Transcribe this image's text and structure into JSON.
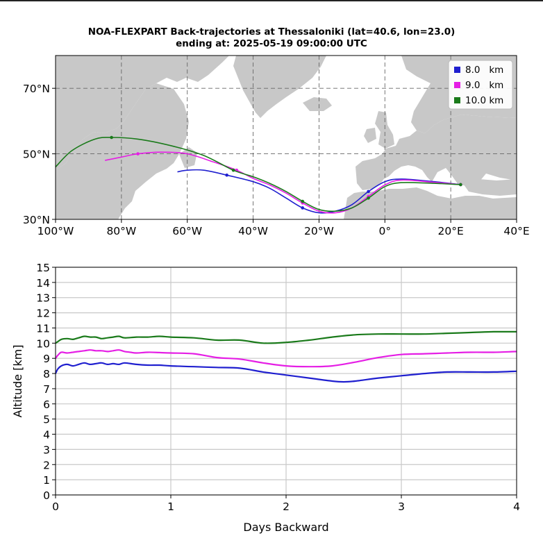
{
  "title_line1": "NOA-FLEXPART Back-trajectories at Thessaloniki (lat=40.6, lon=23.0)",
  "title_line2": "ending at: 2025-05-19  09:00:00 UTC",
  "colors": {
    "8.0 km": "#1f1fcf",
    "9.0 km": "#e51ee5",
    "10.0 km": "#1a7a1a",
    "land": "#c8c8c8",
    "ocean": "#ffffff"
  },
  "chart_data": [
    {
      "type": "map-trajectory",
      "xlim": [
        -100,
        40
      ],
      "ylim": [
        30,
        80
      ],
      "x_ticks": [
        "100°W",
        "80°W",
        "60°W",
        "40°W",
        "20°W",
        "0°",
        "20°E",
        "40°E"
      ],
      "y_ticks": [
        "30°N",
        "50°N",
        "70°N"
      ],
      "grid": true,
      "legend": {
        "position": "top-right",
        "entries": [
          "8.0   km",
          "9.0   km",
          "10.0 km"
        ]
      },
      "series": [
        {
          "name": "8.0   km",
          "points": [
            [
              23,
              40.6
            ],
            [
              15,
              41.5
            ],
            [
              5,
              42.3
            ],
            [
              0,
              41.5
            ],
            [
              -5,
              38.5
            ],
            [
              -10,
              34.5
            ],
            [
              -15,
              32.5
            ],
            [
              -20,
              32
            ],
            [
              -25,
              33.5
            ],
            [
              -30,
              36.5
            ],
            [
              -35,
              39.5
            ],
            [
              -40,
              41.5
            ],
            [
              -48,
              43.5
            ],
            [
              -55,
              45
            ],
            [
              -60,
              45
            ],
            [
              -63,
              44.5
            ]
          ]
        },
        {
          "name": "9.0   km",
          "points": [
            [
              23,
              40.6
            ],
            [
              15,
              41.3
            ],
            [
              5,
              42
            ],
            [
              0,
              40.5
            ],
            [
              -5,
              37
            ],
            [
              -10,
              33.5
            ],
            [
              -15,
              32
            ],
            [
              -20,
              32.5
            ],
            [
              -25,
              35
            ],
            [
              -30,
              38
            ],
            [
              -35,
              40.5
            ],
            [
              -40,
              42.5
            ],
            [
              -45,
              45
            ],
            [
              -52,
              47.5
            ],
            [
              -60,
              50
            ],
            [
              -68,
              50.5
            ],
            [
              -75,
              50
            ],
            [
              -80,
              49
            ],
            [
              -85,
              48
            ]
          ]
        },
        {
          "name": "10.0 km",
          "points": [
            [
              23,
              40.6
            ],
            [
              15,
              41
            ],
            [
              5,
              41.2
            ],
            [
              0,
              40
            ],
            [
              -5,
              36.5
            ],
            [
              -10,
              33.5
            ],
            [
              -15,
              32.5
            ],
            [
              -20,
              33
            ],
            [
              -25,
              35.5
            ],
            [
              -30,
              38.5
            ],
            [
              -35,
              41
            ],
            [
              -40,
              43
            ],
            [
              -46,
              45
            ],
            [
              -55,
              49.5
            ],
            [
              -65,
              52.5
            ],
            [
              -75,
              54.5
            ],
            [
              -83,
              55
            ],
            [
              -88,
              54.5
            ],
            [
              -95,
              51
            ],
            [
              -100,
              46
            ]
          ]
        }
      ]
    },
    {
      "type": "line",
      "xlabel": "Days Backward",
      "ylabel": "Altitude [km]",
      "xlim": [
        0,
        4
      ],
      "ylim": [
        0,
        15
      ],
      "x_ticks": [
        "0",
        "1",
        "2",
        "3",
        "4"
      ],
      "y_ticks": [
        "0",
        "1",
        "2",
        "3",
        "4",
        "5",
        "6",
        "7",
        "8",
        "9",
        "10",
        "11",
        "12",
        "13",
        "14",
        "15"
      ],
      "grid": true,
      "series": [
        {
          "name": "8.0   km",
          "x": [
            0,
            0.02,
            0.05,
            0.1,
            0.15,
            0.2,
            0.25,
            0.3,
            0.35,
            0.4,
            0.45,
            0.5,
            0.55,
            0.6,
            0.7,
            0.8,
            0.9,
            1.0,
            1.2,
            1.4,
            1.6,
            1.8,
            2.0,
            2.2,
            2.4,
            2.5,
            2.6,
            2.8,
            3.0,
            3.2,
            3.4,
            3.6,
            3.8,
            4.0
          ],
          "values": [
            8.0,
            8.3,
            8.5,
            8.6,
            8.5,
            8.6,
            8.7,
            8.6,
            8.65,
            8.7,
            8.6,
            8.65,
            8.6,
            8.7,
            8.6,
            8.55,
            8.55,
            8.5,
            8.45,
            8.4,
            8.35,
            8.1,
            7.9,
            7.7,
            7.5,
            7.45,
            7.5,
            7.7,
            7.85,
            8.0,
            8.1,
            8.1,
            8.1,
            8.15
          ]
        },
        {
          "name": "9.0   km",
          "x": [
            0,
            0.02,
            0.05,
            0.1,
            0.15,
            0.2,
            0.25,
            0.3,
            0.35,
            0.4,
            0.45,
            0.5,
            0.55,
            0.6,
            0.65,
            0.7,
            0.8,
            0.9,
            1.0,
            1.2,
            1.4,
            1.6,
            1.8,
            2.0,
            2.2,
            2.4,
            2.6,
            2.8,
            3.0,
            3.2,
            3.4,
            3.6,
            3.8,
            4.0
          ],
          "values": [
            9.0,
            9.2,
            9.4,
            9.35,
            9.4,
            9.45,
            9.5,
            9.55,
            9.5,
            9.5,
            9.45,
            9.5,
            9.55,
            9.45,
            9.4,
            9.35,
            9.4,
            9.38,
            9.35,
            9.3,
            9.05,
            8.95,
            8.7,
            8.5,
            8.45,
            8.5,
            8.75,
            9.05,
            9.25,
            9.3,
            9.35,
            9.4,
            9.4,
            9.45
          ]
        },
        {
          "name": "10.0 km",
          "x": [
            0,
            0.02,
            0.05,
            0.1,
            0.15,
            0.2,
            0.25,
            0.3,
            0.35,
            0.4,
            0.45,
            0.5,
            0.55,
            0.6,
            0.7,
            0.8,
            0.9,
            1.0,
            1.2,
            1.4,
            1.6,
            1.8,
            2.0,
            2.2,
            2.4,
            2.6,
            2.8,
            3.0,
            3.2,
            3.4,
            3.6,
            3.8,
            4.0
          ],
          "values": [
            10.0,
            10.1,
            10.25,
            10.3,
            10.25,
            10.35,
            10.45,
            10.4,
            10.4,
            10.3,
            10.35,
            10.4,
            10.45,
            10.35,
            10.4,
            10.4,
            10.45,
            10.4,
            10.35,
            10.2,
            10.2,
            10.0,
            10.05,
            10.2,
            10.4,
            10.55,
            10.6,
            10.6,
            10.6,
            10.65,
            10.7,
            10.75,
            10.75
          ]
        }
      ]
    }
  ]
}
